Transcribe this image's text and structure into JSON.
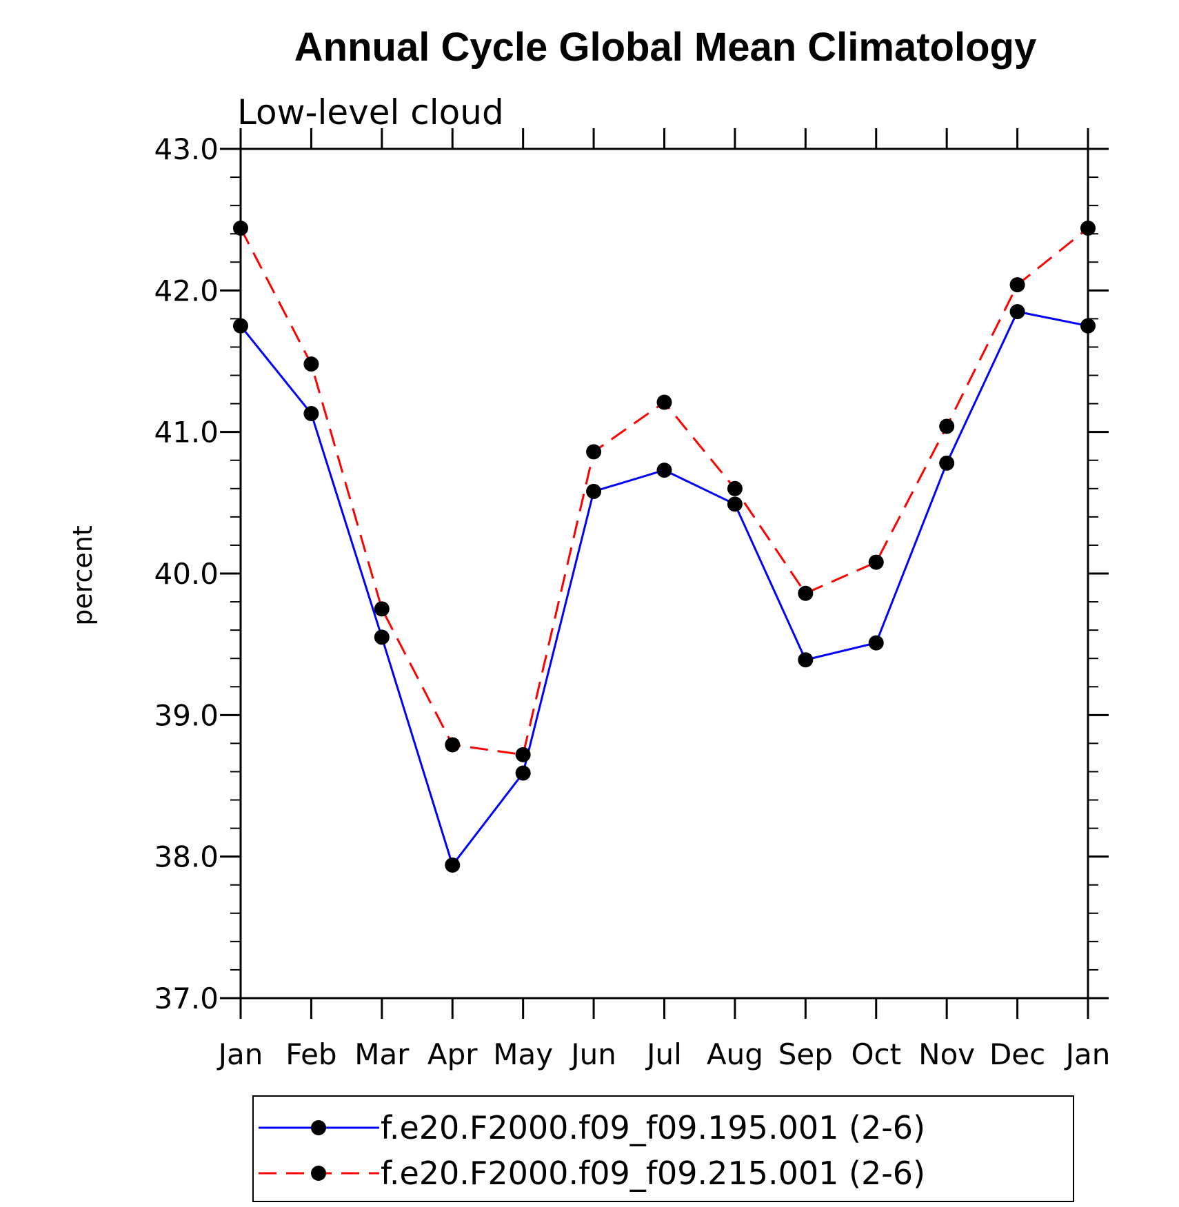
{
  "chart_data": {
    "type": "line",
    "title": "Annual Cycle Global Mean Climatology",
    "subtitle": "Low-level cloud",
    "xlabel": "",
    "ylabel": "percent",
    "categories": [
      "Jan",
      "Feb",
      "Mar",
      "Apr",
      "May",
      "Jun",
      "Jul",
      "Aug",
      "Sep",
      "Oct",
      "Nov",
      "Dec",
      "Jan"
    ],
    "ylim": [
      37.0,
      43.0
    ],
    "yticks": [
      "37.0",
      "38.0",
      "39.0",
      "40.0",
      "41.0",
      "42.0",
      "43.0"
    ],
    "grid": false,
    "legend_position": "bottom",
    "series": [
      {
        "name": "f.e20.F2000.f09_f09.195.001 (2-6)",
        "color": "#0000ff",
        "dash": "solid",
        "values": [
          41.75,
          41.13,
          39.55,
          37.94,
          38.59,
          40.58,
          40.73,
          40.49,
          39.39,
          39.51,
          40.78,
          41.85,
          41.75
        ]
      },
      {
        "name": "f.e20.F2000.f09_f09.215.001 (2-6)",
        "color": "#ff0000",
        "dash": "dashed",
        "values": [
          42.44,
          41.48,
          39.75,
          38.79,
          38.72,
          40.86,
          41.21,
          40.6,
          39.86,
          40.08,
          41.04,
          42.04,
          42.44
        ]
      }
    ]
  }
}
